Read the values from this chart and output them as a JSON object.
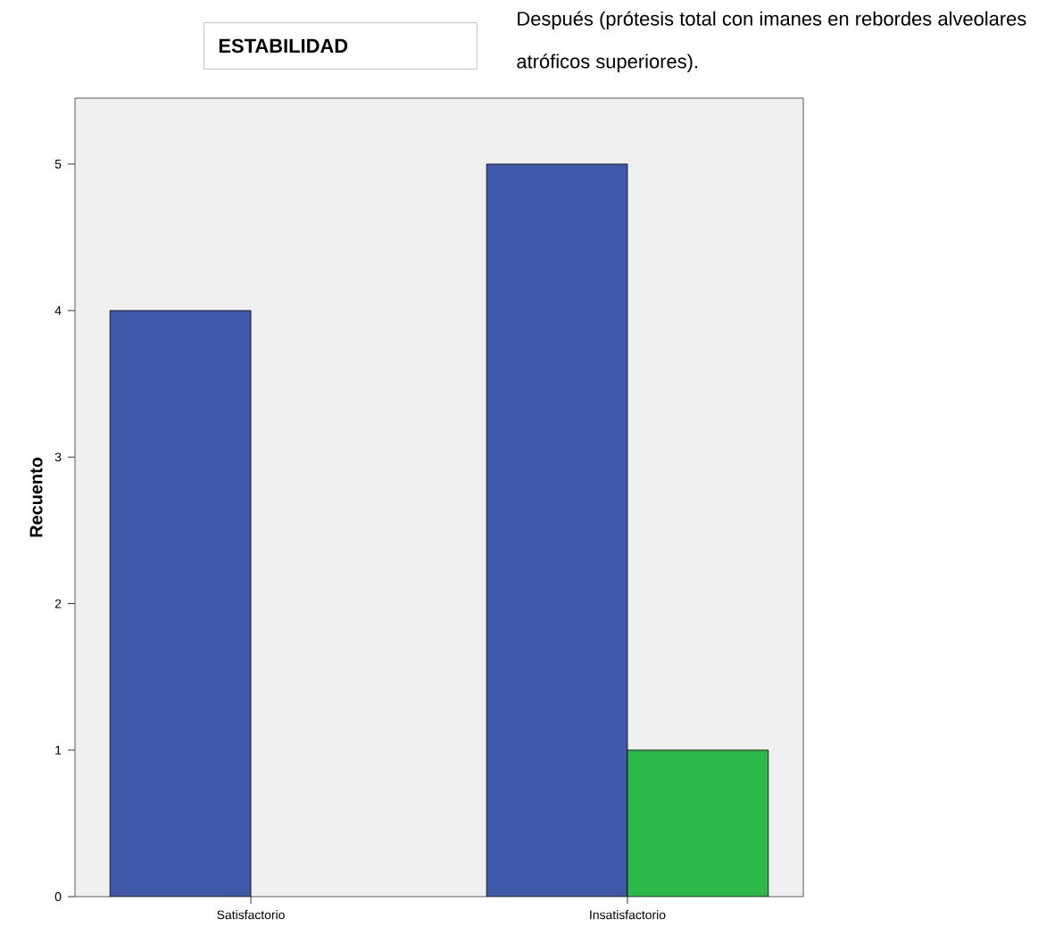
{
  "chart_data": {
    "type": "bar",
    "title": "ESTABILIDAD",
    "subtitle": "Después (prótesis total con imanes en rebordes alveolares atróficos superiores).",
    "ylabel": "Recuento",
    "categories": [
      "Satisfactorio",
      "Insatisfactorio"
    ],
    "series": [
      {
        "color": "#3f58a8",
        "values": [
          4,
          5
        ]
      },
      {
        "color": "#2db84a",
        "values": [
          null,
          1
        ]
      }
    ],
    "ylim": [
      0,
      5.45
    ],
    "yticks": [
      0,
      1,
      2,
      3,
      4,
      5
    ]
  }
}
